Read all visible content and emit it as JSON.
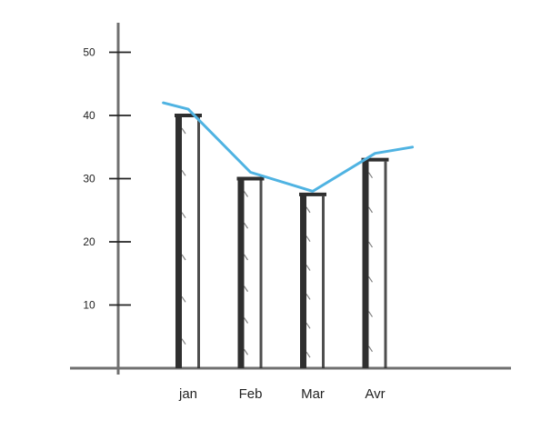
{
  "chart_data": {
    "type": "bar",
    "categories": [
      "jan",
      "Feb",
      "Mar",
      "Avr"
    ],
    "values": [
      40,
      30,
      27.5,
      33
    ],
    "line_series": {
      "x_positions": [
        -0.4,
        0,
        1,
        2,
        3,
        3.6
      ],
      "values": [
        42,
        41,
        31,
        28,
        34,
        35
      ]
    },
    "yticks": [
      10,
      20,
      30,
      40,
      50
    ],
    "ylim": [
      0,
      55
    ],
    "title": "",
    "xlabel": "",
    "ylabel": "",
    "grid": false,
    "colors": {
      "bars": "#2f2f2f",
      "line": "#4fb3e2",
      "axis": "#707070"
    }
  }
}
